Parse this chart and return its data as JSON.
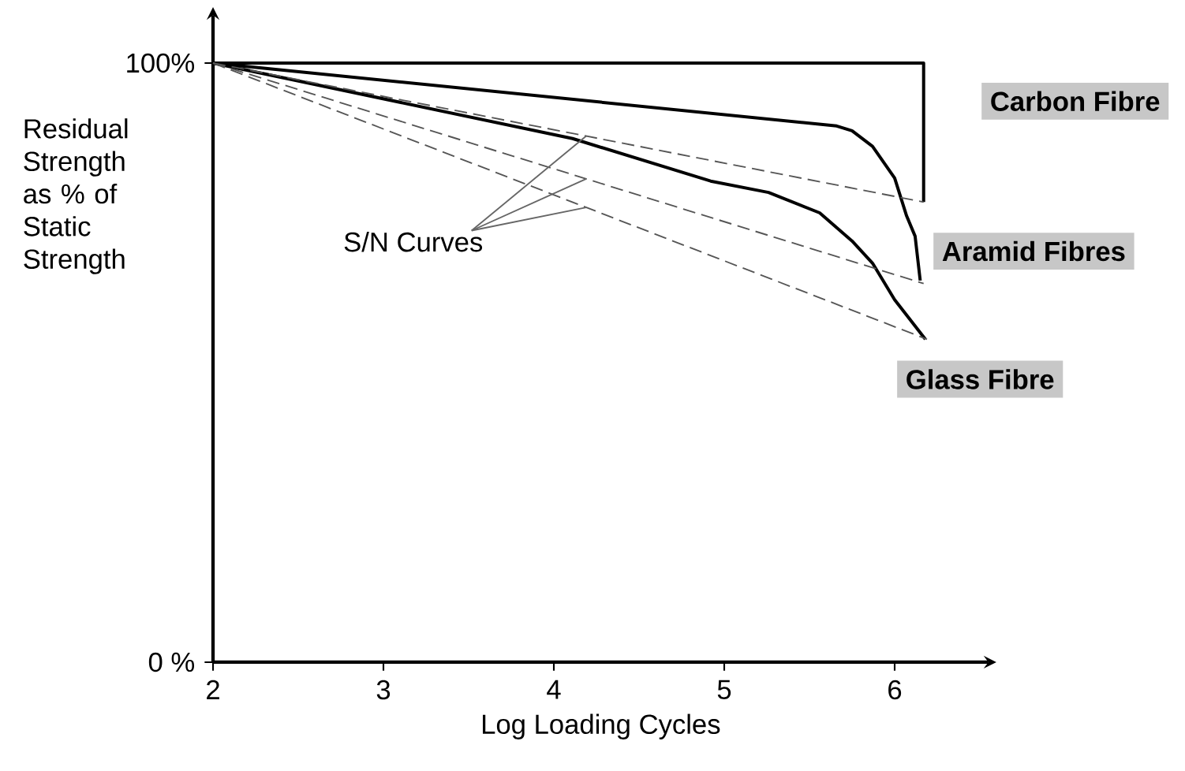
{
  "chart_data": {
    "type": "line",
    "xlabel": "Log Loading Cycles",
    "ylabel": "Residual Strength as % of Static Strength",
    "xlim": [
      2,
      6.55
    ],
    "ylim": [
      0,
      108
    ],
    "xticks": [
      2,
      3,
      4,
      5,
      6
    ],
    "yticks": [
      {
        "value": 0,
        "label": "0 %"
      },
      {
        "value": 100,
        "label": "100%"
      }
    ],
    "grid": false,
    "series": [
      {
        "name": "Carbon Fibre",
        "color": "#000000",
        "line_style": "solid",
        "x": [
          2,
          6.17,
          6.17
        ],
        "values": [
          100,
          100,
          76.8
        ]
      },
      {
        "name": "Aramid Fibres",
        "color": "#000000",
        "line_style": "solid",
        "x": [
          2,
          5.66,
          5.75,
          5.87,
          6.0,
          6.07,
          6.12,
          6.15
        ],
        "values": [
          100,
          89.5,
          88.7,
          86.1,
          80.8,
          74.5,
          71.1,
          63.7
        ]
      },
      {
        "name": "Glass Fibre",
        "color": "#000000",
        "line_style": "solid",
        "x": [
          2,
          4.11,
          4.92,
          5.26,
          5.56,
          5.75,
          5.87,
          6.0,
          6.18
        ],
        "values": [
          100,
          87.4,
          80.3,
          78.4,
          75,
          70.3,
          66.6,
          60.5,
          53.9
        ]
      },
      {
        "color": "#555555",
        "line_style": "dashed",
        "x": [
          2,
          6.17
        ],
        "values": [
          100,
          76.8
        ]
      },
      {
        "color": "#555555",
        "line_style": "dashed",
        "x": [
          2,
          6.17
        ],
        "values": [
          100,
          63.2
        ]
      },
      {
        "color": "#555555",
        "line_style": "dashed",
        "x": [
          2,
          6.19
        ],
        "values": [
          100,
          53.9
        ]
      }
    ],
    "annotations": [
      {
        "text": "S/N Curves",
        "x": 4.19,
        "y": 80.7
      }
    ]
  }
}
